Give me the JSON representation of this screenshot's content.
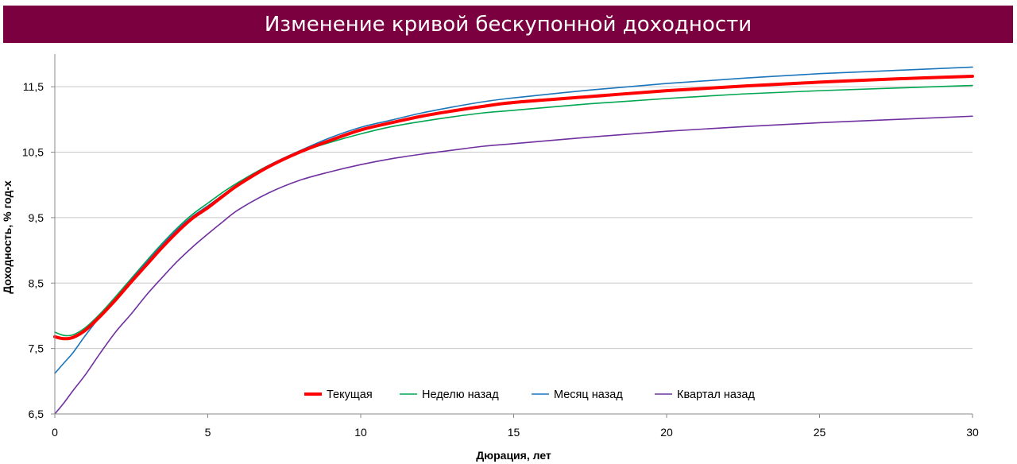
{
  "header": {
    "title": "Изменение кривой бескупонной доходности"
  },
  "chart_data": {
    "type": "line",
    "title": "Изменение кривой бескупонной доходности",
    "xlabel": "Дюрация, лет",
    "ylabel": "Доходность, % год-х",
    "xlim": [
      0,
      30
    ],
    "ylim": [
      6.5,
      12.0
    ],
    "xticks": [
      0,
      5,
      10,
      15,
      20,
      25,
      30
    ],
    "xtick_labels": [
      "0",
      "5",
      "10",
      "15",
      "20",
      "25",
      "30"
    ],
    "yticks": [
      6.5,
      7.5,
      8.5,
      9.5,
      10.5,
      11.5
    ],
    "ytick_labels": [
      "6,5",
      "7,5",
      "8,5",
      "9,5",
      "10,5",
      "11,5"
    ],
    "grid": "horizontal",
    "legend_position": "bottom-center",
    "series": [
      {
        "name": "Текущая",
        "color": "#ff0000",
        "line_width": "thick",
        "points": [
          [
            0,
            7.68
          ],
          [
            0.3,
            7.65
          ],
          [
            0.6,
            7.67
          ],
          [
            1,
            7.78
          ],
          [
            1.5,
            8.0
          ],
          [
            2,
            8.25
          ],
          [
            2.5,
            8.52
          ],
          [
            3,
            8.78
          ],
          [
            3.5,
            9.04
          ],
          [
            4,
            9.28
          ],
          [
            4.5,
            9.49
          ],
          [
            5,
            9.65
          ],
          [
            5.5,
            9.83
          ],
          [
            6,
            10.0
          ],
          [
            7,
            10.28
          ],
          [
            8,
            10.5
          ],
          [
            9,
            10.68
          ],
          [
            10,
            10.84
          ],
          [
            11,
            10.95
          ],
          [
            12,
            11.05
          ],
          [
            13,
            11.13
          ],
          [
            14,
            11.2
          ],
          [
            15,
            11.26
          ],
          [
            17.5,
            11.35
          ],
          [
            20,
            11.44
          ],
          [
            22.5,
            11.51
          ],
          [
            25,
            11.57
          ],
          [
            27.5,
            11.62
          ],
          [
            30,
            11.66
          ]
        ]
      },
      {
        "name": "Неделю назад",
        "color": "#00a650",
        "line_width": "normal",
        "points": [
          [
            0,
            7.75
          ],
          [
            0.3,
            7.7
          ],
          [
            0.6,
            7.71
          ],
          [
            1,
            7.82
          ],
          [
            1.5,
            8.04
          ],
          [
            2,
            8.3
          ],
          [
            2.5,
            8.57
          ],
          [
            3,
            8.84
          ],
          [
            3.5,
            9.1
          ],
          [
            4,
            9.34
          ],
          [
            4.5,
            9.55
          ],
          [
            5,
            9.72
          ],
          [
            5.5,
            9.89
          ],
          [
            6,
            10.04
          ],
          [
            7,
            10.3
          ],
          [
            8,
            10.5
          ],
          [
            9,
            10.65
          ],
          [
            10,
            10.78
          ],
          [
            11,
            10.89
          ],
          [
            12,
            10.97
          ],
          [
            13,
            11.04
          ],
          [
            14,
            11.1
          ],
          [
            15,
            11.14
          ],
          [
            17.5,
            11.24
          ],
          [
            20,
            11.32
          ],
          [
            22.5,
            11.39
          ],
          [
            25,
            11.44
          ],
          [
            27.5,
            11.48
          ],
          [
            30,
            11.52
          ]
        ]
      },
      {
        "name": "Месяц назад",
        "color": "#1b75bb",
        "line_width": "normal",
        "points": [
          [
            0,
            7.12
          ],
          [
            0.3,
            7.28
          ],
          [
            0.6,
            7.44
          ],
          [
            1,
            7.7
          ],
          [
            1.5,
            8.0
          ],
          [
            2,
            8.27
          ],
          [
            2.5,
            8.55
          ],
          [
            3,
            8.82
          ],
          [
            3.5,
            9.08
          ],
          [
            4,
            9.32
          ],
          [
            4.5,
            9.52
          ],
          [
            5,
            9.68
          ],
          [
            5.5,
            9.85
          ],
          [
            6,
            10.02
          ],
          [
            7,
            10.3
          ],
          [
            8,
            10.52
          ],
          [
            9,
            10.72
          ],
          [
            10,
            10.88
          ],
          [
            11,
            10.99
          ],
          [
            12,
            11.1
          ],
          [
            13,
            11.19
          ],
          [
            14,
            11.27
          ],
          [
            15,
            11.33
          ],
          [
            17.5,
            11.45
          ],
          [
            20,
            11.55
          ],
          [
            22.5,
            11.63
          ],
          [
            25,
            11.7
          ],
          [
            27.5,
            11.75
          ],
          [
            30,
            11.8
          ]
        ]
      },
      {
        "name": "Квартал назад",
        "color": "#7030a0",
        "line_width": "normal",
        "points": [
          [
            0,
            6.5
          ],
          [
            0.3,
            6.67
          ],
          [
            0.6,
            6.86
          ],
          [
            1,
            7.1
          ],
          [
            1.5,
            7.44
          ],
          [
            2,
            7.76
          ],
          [
            2.5,
            8.03
          ],
          [
            3,
            8.32
          ],
          [
            3.5,
            8.58
          ],
          [
            4,
            8.83
          ],
          [
            4.5,
            9.05
          ],
          [
            5,
            9.25
          ],
          [
            5.5,
            9.44
          ],
          [
            6,
            9.62
          ],
          [
            7,
            9.88
          ],
          [
            8,
            10.07
          ],
          [
            9,
            10.2
          ],
          [
            10,
            10.31
          ],
          [
            11,
            10.4
          ],
          [
            12,
            10.47
          ],
          [
            13,
            10.53
          ],
          [
            14,
            10.59
          ],
          [
            15,
            10.63
          ],
          [
            17.5,
            10.73
          ],
          [
            20,
            10.82
          ],
          [
            22.5,
            10.89
          ],
          [
            25,
            10.95
          ],
          [
            27.5,
            11.0
          ],
          [
            30,
            11.05
          ]
        ]
      }
    ]
  }
}
